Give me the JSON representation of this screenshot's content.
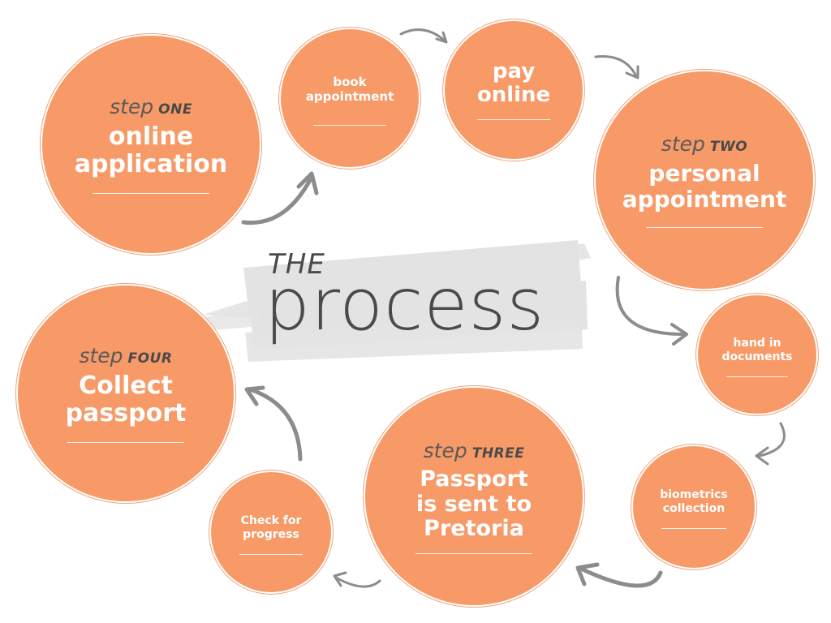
{
  "title": {
    "the": "THE",
    "process": "process"
  },
  "colors": {
    "circle_fill": "#f79a67",
    "arrow": "#8c8c8c",
    "brush": "#e0e0e0",
    "text_dark": "#4a4a4a"
  },
  "steps": {
    "one": {
      "step_prefix": "step",
      "step_word": "ONE",
      "title": "online\napplication"
    },
    "two": {
      "step_prefix": "step",
      "step_word": "TWO",
      "title": "personal\nappointment"
    },
    "three": {
      "step_prefix": "step",
      "step_word": "THREE",
      "title": "Passport\nis sent to\nPretoria"
    },
    "four": {
      "step_prefix": "step",
      "step_word": "FOUR",
      "title": "Collect\npassport"
    }
  },
  "substeps": {
    "book_appointment": "book\nappointment",
    "pay_online": "pay\nonline",
    "hand_in_documents": "hand in\ndocuments",
    "biometrics_collection": "biometrics\ncollection",
    "check_for_progress": "Check for\nprogress"
  },
  "icons": {
    "arrow": "curved-arrow-icon"
  }
}
